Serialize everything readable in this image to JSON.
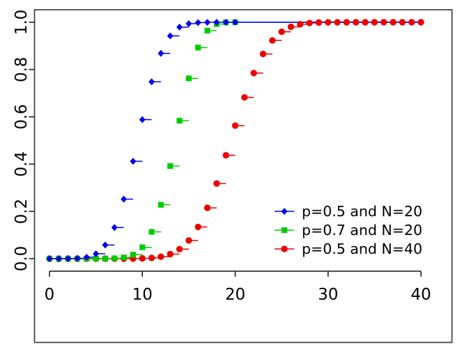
{
  "chart_data": {
    "type": "line",
    "subtype": "step-cdf-with-markers",
    "title": "",
    "xlabel": "",
    "ylabel": "",
    "xlim": [
      0,
      40
    ],
    "ylim": [
      0.0,
      1.0
    ],
    "x_ticks": [
      0,
      10,
      20,
      30,
      40
    ],
    "y_ticks": [
      "0.0",
      "0.2",
      "0.4",
      "0.6",
      "0.8",
      "1.0"
    ],
    "grid": false,
    "legend_position": "inside-right",
    "step_extend_xmax": 40,
    "series": [
      {
        "name": "p=0.5 and N=20",
        "color": "#0000EE",
        "marker": "diamond",
        "x": [
          0,
          1,
          2,
          3,
          4,
          5,
          6,
          7,
          8,
          9,
          10,
          11,
          12,
          13,
          14,
          15,
          16,
          17,
          18,
          19,
          20
        ],
        "y": [
          0.0,
          0.0,
          0.0002,
          0.0013,
          0.0059,
          0.0207,
          0.0577,
          0.1316,
          0.2517,
          0.4119,
          0.5881,
          0.7483,
          0.8684,
          0.9423,
          0.9793,
          0.9941,
          0.9987,
          0.9998,
          1.0,
          1.0,
          1.0
        ]
      },
      {
        "name": "p=0.7 and N=20",
        "color": "#00CC00",
        "marker": "square",
        "x": [
          0,
          1,
          2,
          3,
          4,
          5,
          6,
          7,
          8,
          9,
          10,
          11,
          12,
          13,
          14,
          15,
          16,
          17,
          18,
          19,
          20
        ],
        "y": [
          0.0,
          0.0,
          0.0,
          0.0,
          0.0,
          0.0,
          0.0003,
          0.0013,
          0.0051,
          0.0171,
          0.048,
          0.1133,
          0.2277,
          0.392,
          0.5836,
          0.7625,
          0.8929,
          0.9645,
          0.9924,
          0.9992,
          1.0
        ]
      },
      {
        "name": "p=0.5 and N=40",
        "color": "#EE0000",
        "marker": "circle",
        "x": [
          0,
          1,
          2,
          3,
          4,
          5,
          6,
          7,
          8,
          9,
          10,
          11,
          12,
          13,
          14,
          15,
          16,
          17,
          18,
          19,
          20,
          21,
          22,
          23,
          24,
          25,
          26,
          27,
          28,
          29,
          30,
          31,
          32,
          33,
          34,
          35,
          36,
          37,
          38,
          39,
          40
        ],
        "y": [
          0.0,
          0.0,
          0.0,
          0.0,
          0.0,
          0.0,
          0.0,
          0.0,
          0.0,
          0.0003,
          0.0011,
          0.0032,
          0.0083,
          0.0192,
          0.0403,
          0.0769,
          0.1341,
          0.2148,
          0.3179,
          0.4373,
          0.5627,
          0.6821,
          0.7852,
          0.8659,
          0.9231,
          0.9597,
          0.9808,
          0.9917,
          0.9968,
          0.9989,
          0.9997,
          0.9999,
          1.0,
          1.0,
          1.0,
          1.0,
          1.0,
          1.0,
          1.0,
          1.0,
          1.0
        ]
      }
    ]
  },
  "colors": {
    "background": "#ffffff",
    "box": "#3d3d3d",
    "axis": "#141414",
    "tick_label": "#000000",
    "legend_text": "#000000",
    "series_blue": "#0000EE",
    "series_green": "#00CC00",
    "series_red": "#EE0000"
  }
}
